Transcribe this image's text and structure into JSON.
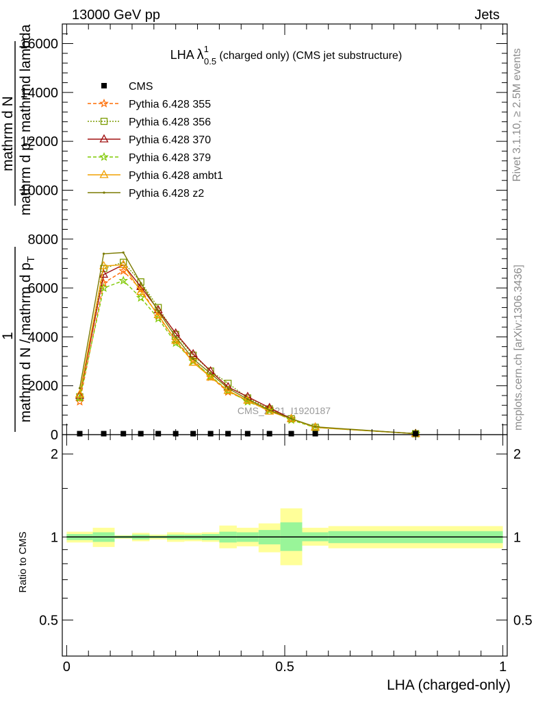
{
  "header": {
    "left": "13000 GeV pp",
    "right": "Jets"
  },
  "side_labels": {
    "rivet": "Rivet 3.1.10, ≥ 2.5M events",
    "mcplots": "mcplots.cern.ch [arXiv:1306.3436]"
  },
  "watermark": "CMS_2021_I1920187",
  "chart_data": [
    {
      "type": "line",
      "title_main": "LHA",
      "title_symbol": "λ",
      "title_sup": "1",
      "title_sub": "0.5",
      "title_rest": "(charged only) (CMS jet substructure)",
      "ylabel_parts": [
        "1",
        "mathrm d N",
        "mathrm d N / mathrm d p",
        "T",
        "mathrm d p",
        "T",
        "mathrmd lambda",
        "mathrm d",
        "2",
        "N",
        "mathrm d p",
        "T",
        "mathrm d lambda"
      ],
      "ylim": [
        0,
        16800
      ],
      "xlim": [
        -0.01,
        1.01
      ],
      "yticks": [
        0,
        2000,
        4000,
        6000,
        8000,
        10000,
        12000,
        14000,
        16000
      ],
      "ytick_labels": [
        "0",
        "2000",
        "4000",
        "6000",
        "8000",
        "10000",
        "12000",
        "14000",
        "16000"
      ],
      "legend_position": "top-left",
      "x": [
        0.03,
        0.085,
        0.13,
        0.17,
        0.21,
        0.25,
        0.29,
        0.33,
        0.37,
        0.415,
        0.465,
        0.515,
        0.57,
        0.8
      ],
      "cms": [
        40,
        40,
        40,
        40,
        40,
        40,
        40,
        40,
        40,
        40,
        40,
        40,
        40,
        40
      ],
      "series": [
        {
          "name": "Pythia 6.428 355",
          "color": "#ff6b00",
          "marker": "star",
          "dash": "5,3",
          "values": [
            1350,
            6200,
            6700,
            5950,
            4850,
            3850,
            3050,
            2350,
            1750,
            1400,
            1050,
            650,
            300,
            40
          ]
        },
        {
          "name": "Pythia 6.428 356",
          "color": "#7a9a00",
          "marker": "square-open",
          "dash": "2,2",
          "values": [
            1550,
            6800,
            7050,
            6250,
            5200,
            4100,
            3250,
            2600,
            2100,
            1500,
            1050,
            650,
            300,
            40
          ]
        },
        {
          "name": "Pythia 6.428 370",
          "color": "#a01010",
          "marker": "triangle-open",
          "dash": "",
          "values": [
            1600,
            6550,
            6950,
            6050,
            5100,
            4150,
            3300,
            2600,
            1950,
            1550,
            1100,
            650,
            300,
            40
          ]
        },
        {
          "name": "Pythia 6.428 379",
          "color": "#7ec800",
          "marker": "star",
          "dash": "5,3",
          "values": [
            1500,
            6000,
            6300,
            5600,
            4750,
            3750,
            3000,
            2400,
            1800,
            1350,
            1000,
            600,
            290,
            40
          ]
        },
        {
          "name": "Pythia 6.428 ambt1",
          "color": "#f0a000",
          "marker": "triangle-open",
          "dash": "",
          "values": [
            1650,
            6900,
            6950,
            5850,
            4900,
            3850,
            2950,
            2350,
            1800,
            1400,
            950,
            650,
            300,
            40
          ]
        },
        {
          "name": "Pythia 6.428 z2",
          "color": "#7a7a00",
          "marker": "dot",
          "dash": "",
          "values": [
            1900,
            7400,
            7450,
            6200,
            5050,
            4000,
            3100,
            2500,
            1900,
            1450,
            1000,
            650,
            320,
            40
          ]
        }
      ],
      "legend_cms_label": "CMS"
    },
    {
      "type": "area",
      "ylabel": "Ratio to CMS",
      "xlabel": "LHA (charged-only)",
      "ylim": [
        0.37,
        2.35
      ],
      "log_y": true,
      "yticks": [
        0.5,
        1,
        2
      ],
      "ytick_labels": [
        "0.5",
        "1",
        "2"
      ],
      "xticks": [
        0,
        0.5,
        1
      ],
      "xtick_labels": [
        "0",
        "0.5",
        "1"
      ],
      "bins": [
        {
          "x0": 0.0,
          "x1": 0.06,
          "stat_lo": 0.975,
          "stat_hi": 1.025,
          "tot_lo": 0.955,
          "tot_hi": 1.045
        },
        {
          "x0": 0.06,
          "x1": 0.11,
          "stat_lo": 0.96,
          "stat_hi": 1.04,
          "tot_lo": 0.92,
          "tot_hi": 1.08
        },
        {
          "x0": 0.11,
          "x1": 0.15,
          "stat_lo": 0.99,
          "stat_hi": 1.01,
          "tot_lo": 0.985,
          "tot_hi": 1.015
        },
        {
          "x0": 0.15,
          "x1": 0.19,
          "stat_lo": 0.98,
          "stat_hi": 1.02,
          "tot_lo": 0.965,
          "tot_hi": 1.035
        },
        {
          "x0": 0.19,
          "x1": 0.23,
          "stat_lo": 0.99,
          "stat_hi": 1.01,
          "tot_lo": 0.98,
          "tot_hi": 1.02
        },
        {
          "x0": 0.23,
          "x1": 0.27,
          "stat_lo": 0.98,
          "stat_hi": 1.02,
          "tot_lo": 0.96,
          "tot_hi": 1.04
        },
        {
          "x0": 0.27,
          "x1": 0.31,
          "stat_lo": 0.98,
          "stat_hi": 1.02,
          "tot_lo": 0.965,
          "tot_hi": 1.035
        },
        {
          "x0": 0.31,
          "x1": 0.35,
          "stat_lo": 0.975,
          "stat_hi": 1.025,
          "tot_lo": 0.96,
          "tot_hi": 1.04
        },
        {
          "x0": 0.35,
          "x1": 0.39,
          "stat_lo": 0.955,
          "stat_hi": 1.045,
          "tot_lo": 0.91,
          "tot_hi": 1.1
        },
        {
          "x0": 0.39,
          "x1": 0.44,
          "stat_lo": 0.96,
          "stat_hi": 1.04,
          "tot_lo": 0.925,
          "tot_hi": 1.08
        },
        {
          "x0": 0.44,
          "x1": 0.49,
          "stat_lo": 0.94,
          "stat_hi": 1.06,
          "tot_lo": 0.88,
          "tot_hi": 1.12
        },
        {
          "x0": 0.49,
          "x1": 0.54,
          "stat_lo": 0.89,
          "stat_hi": 1.13,
          "tot_lo": 0.79,
          "tot_hi": 1.27
        },
        {
          "x0": 0.54,
          "x1": 0.6,
          "stat_lo": 0.965,
          "stat_hi": 1.04,
          "tot_lo": 0.93,
          "tot_hi": 1.08
        },
        {
          "x0": 0.6,
          "x1": 1.0,
          "stat_lo": 0.95,
          "stat_hi": 1.05,
          "tot_lo": 0.91,
          "tot_hi": 1.095
        }
      ],
      "colors": {
        "stat": "#99f599",
        "total": "#ffff99"
      }
    }
  ]
}
